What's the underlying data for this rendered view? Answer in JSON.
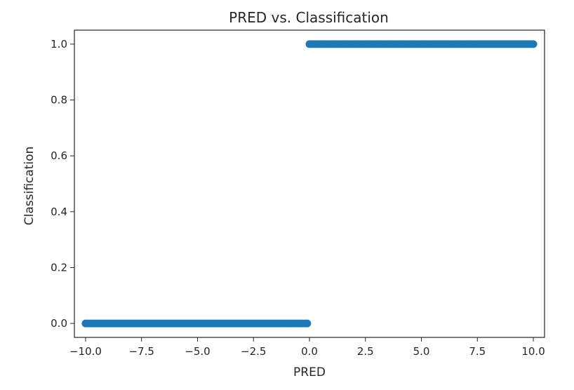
{
  "chart_data": {
    "type": "scatter",
    "title": "PRED vs. Classification",
    "xlabel": "PRED",
    "ylabel": "Classification",
    "xlim": [
      -10.5,
      10.5
    ],
    "ylim": [
      -0.05,
      1.05
    ],
    "xticks": [
      -10.0,
      -7.5,
      -5.0,
      -2.5,
      0.0,
      2.5,
      5.0,
      7.5,
      10.0
    ],
    "xtick_labels": [
      "−10.0",
      "−7.5",
      "−5.0",
      "−2.5",
      "0.0",
      "2.5",
      "5.0",
      "7.5",
      "10.0"
    ],
    "yticks": [
      0.0,
      0.2,
      0.4,
      0.6,
      0.8,
      1.0
    ],
    "ytick_labels": [
      "0.0",
      "0.2",
      "0.4",
      "0.6",
      "0.8",
      "1.0"
    ],
    "grid": false,
    "marker_color": "#1f77b4",
    "series": [
      {
        "point_runs": [
          {
            "x_start": -10.0,
            "x_end": -0.1,
            "step": 0.1,
            "y": 0
          },
          {
            "x_start": 0.0,
            "x_end": 10.0,
            "step": 0.1,
            "y": 1
          }
        ]
      }
    ]
  }
}
